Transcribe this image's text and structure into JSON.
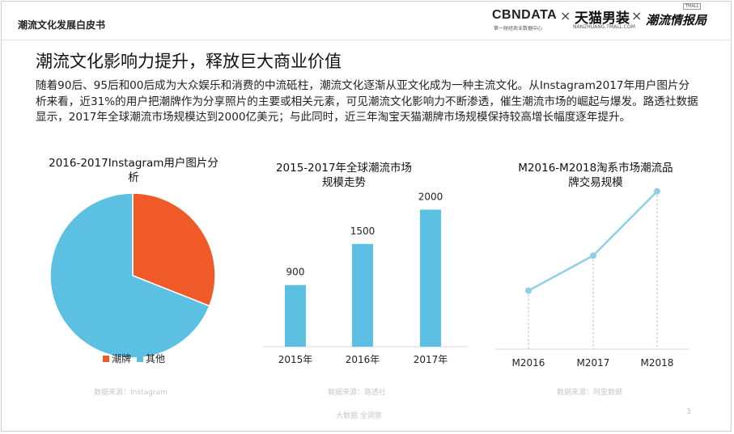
{
  "header": {
    "report_title": "潮流文化发展白皮书",
    "logos": {
      "cbndata": "CBNDATA",
      "cbndata_sub": "第一财经商业数据中心",
      "separator": "×",
      "tmall_men": "天猫男装",
      "tmall_men_sub": "NANZHUANG.TMALL.COM",
      "trend_report": "潮流情报局",
      "trend_tag": "TMALL"
    }
  },
  "slide": {
    "title": "潮流文化影响力提升，释放巨大商业价值",
    "body": "随着90后、95后和00后成为大众娱乐和消费的中流砥柱，潮流文化逐渐从亚文化成为一种主流文化。从Instagram2017年用户图片分析来看，近31%的用户把潮牌作为分享照片的主要或相关元素，可见潮流文化影响力不断渗透，催生潮流市场的崛起与爆发。路透社数据显示，2017年全球潮流市场规模达到2000亿美元；与此同时，近三年淘宝天猫潮牌市场规模保持较高增长幅度逐年提升。"
  },
  "footer": {
    "watermark": "大数据  全洞察",
    "page_number": "3"
  },
  "colors": {
    "orange": "#f05a28",
    "blue": "#5bc0e2",
    "line": "#8ecfe6"
  },
  "chart_data": [
    {
      "type": "pie",
      "title": "2016-2017Instagram用户图片分析",
      "slices": [
        {
          "label": "潮牌",
          "value": 31,
          "color": "#f05a28"
        },
        {
          "label": "其他",
          "value": 69,
          "color": "#5bc0e2"
        }
      ],
      "legend": [
        "潮牌",
        "其他"
      ],
      "legend_position": "bottom",
      "source": "数据来源：Instagram"
    },
    {
      "type": "bar",
      "title": "2015-2017年全球潮流市场规模走势",
      "categories": [
        "2015年",
        "2016年",
        "2017年"
      ],
      "values": [
        900,
        1500,
        2000
      ],
      "data_labels": [
        "900",
        "1500",
        "2000"
      ],
      "color": "#5bc0e2",
      "ylim": [
        0,
        2300
      ],
      "source": "数据来源：路透社"
    },
    {
      "type": "line",
      "title": "M2016-M2018淘系市场潮流品牌交易规模",
      "categories": [
        "M2016",
        "M2017",
        "M2018"
      ],
      "values": [
        1,
        1.6,
        2.7
      ],
      "color": "#8ecfe6",
      "ylim": [
        0,
        3.0
      ],
      "source": "数据来源：阿里数据"
    }
  ]
}
